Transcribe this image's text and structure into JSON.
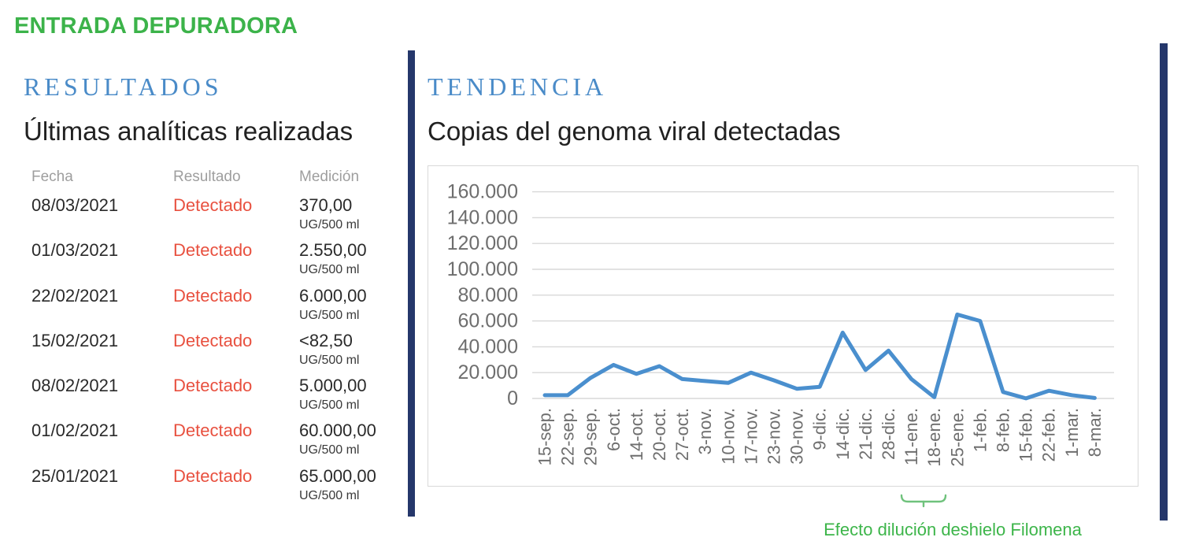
{
  "page_title": "ENTRADA DEPURADORA",
  "colors": {
    "title_green": "#3cb34a",
    "heading_blue": "#4a8bc8",
    "detected_red": "#e8503f",
    "divider_navy": "#25376b",
    "line_blue": "#4a8fce",
    "grid_gray": "#d8d8d8",
    "axis_gray": "#6e6e6e",
    "muted_gray": "#9e9e9e",
    "ink": "#262626",
    "annotation_green": "#3db54a",
    "brace_green": "#6fc27c"
  },
  "results": {
    "section_title": "RESULTADOS",
    "subtitle": "Últimas analíticas realizadas",
    "columns": [
      "Fecha",
      "Resultado",
      "Medición"
    ],
    "unit": "UG/500 ml",
    "rows": [
      {
        "fecha": "08/03/2021",
        "resultado": "Detectado",
        "medicion": "370,00"
      },
      {
        "fecha": "01/03/2021",
        "resultado": "Detectado",
        "medicion": "2.550,00"
      },
      {
        "fecha": "22/02/2021",
        "resultado": "Detectado",
        "medicion": "6.000,00"
      },
      {
        "fecha": "15/02/2021",
        "resultado": "Detectado",
        "medicion": "<82,50"
      },
      {
        "fecha": "08/02/2021",
        "resultado": "Detectado",
        "medicion": "5.000,00"
      },
      {
        "fecha": "01/02/2021",
        "resultado": "Detectado",
        "medicion": "60.000,00"
      },
      {
        "fecha": "25/01/2021",
        "resultado": "Detectado",
        "medicion": "65.000,00"
      }
    ]
  },
  "trend": {
    "section_title": "TENDENCIA",
    "annotation": "Efecto dilución deshielo Filomena"
  },
  "chart_data": {
    "type": "line",
    "title": "Copias del genoma viral detectadas",
    "categories": [
      "15-sep.",
      "22-sep.",
      "29-sep.",
      "6-oct.",
      "14-oct.",
      "20-oct.",
      "27-oct.",
      "3-nov.",
      "10-nov.",
      "17-nov.",
      "23-nov.",
      "30-nov.",
      "9-dic.",
      "14-dic.",
      "21-dic.",
      "28-dic.",
      "11-ene.",
      "18-ene.",
      "25-ene.",
      "1-feb.",
      "8-feb.",
      "15-feb.",
      "22-feb.",
      "1-mar.",
      "8-mar."
    ],
    "values": [
      2500,
      2500,
      16000,
      26000,
      19000,
      25000,
      15000,
      13500,
      12000,
      20000,
      14000,
      7500,
      9000,
      51000,
      22000,
      37000,
      15000,
      1000,
      65000,
      60000,
      5000,
      82.5,
      6000,
      2550,
      370
    ],
    "xlabel": "",
    "ylabel": "",
    "ylim": [
      0,
      160000
    ],
    "ytick_step": 20000,
    "ytick_labels": [
      "0",
      "20.000",
      "40.000",
      "60.000",
      "80.000",
      "100.000",
      "120.000",
      "140.000",
      "160.000"
    ],
    "grid": true,
    "legend_position": "none",
    "line_color": "#4a8fce"
  }
}
